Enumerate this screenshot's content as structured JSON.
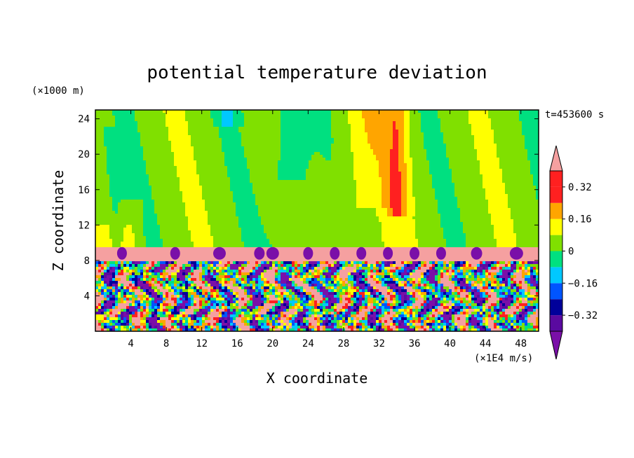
{
  "chart_data": {
    "type": "heatmap",
    "title": "potential temperature deviation",
    "xlabel": "X coordinate",
    "ylabel": "Z coordinate",
    "x_unit": "(×1E4 m/s)",
    "y_unit": "(×1000 m)",
    "time_label": "t=453600 s",
    "xlim": [
      0,
      50
    ],
    "ylim": [
      0,
      25
    ],
    "x_ticks": [
      "4",
      "8",
      "12",
      "16",
      "20",
      "24",
      "28",
      "32",
      "36",
      "40",
      "44",
      "48"
    ],
    "x_tick_values": [
      4,
      8,
      12,
      16,
      20,
      24,
      28,
      32,
      36,
      40,
      44,
      48
    ],
    "y_ticks": [
      "4",
      "8",
      "12",
      "16",
      "20",
      "24"
    ],
    "y_tick_values": [
      4,
      8,
      12,
      16,
      20,
      24
    ],
    "colorbar": {
      "levels": [
        -0.4,
        -0.32,
        -0.24,
        -0.16,
        -0.08,
        0,
        0.08,
        0.16,
        0.24,
        0.32,
        0.4
      ],
      "labels": [
        "0.32",
        "0.16",
        "0",
        "−0.16",
        "−0.32"
      ],
      "label_values": [
        0.32,
        0.16,
        0,
        -0.16,
        -0.32
      ],
      "colors": [
        "#7a0fa8",
        "#5a0aa0",
        "#00009a",
        "#0055ff",
        "#00c8ff",
        "#00e080",
        "#80e000",
        "#ffff00",
        "#ffa500",
        "#ff2020",
        "#f5a0a0"
      ]
    },
    "regions": {
      "upper_layer": {
        "z_range": [
          9.6,
          25
        ],
        "dominant": "0 to 0.08 (green)"
      },
      "inversion_band": {
        "z_range": [
          8.0,
          9.6
        ],
        "dominant": "> 0.4 (pink)"
      },
      "lower_layer": {
        "z_range": [
          0,
          8.0
        ],
        "dominant": "turbulent, −0.4 to 0.4"
      }
    }
  }
}
